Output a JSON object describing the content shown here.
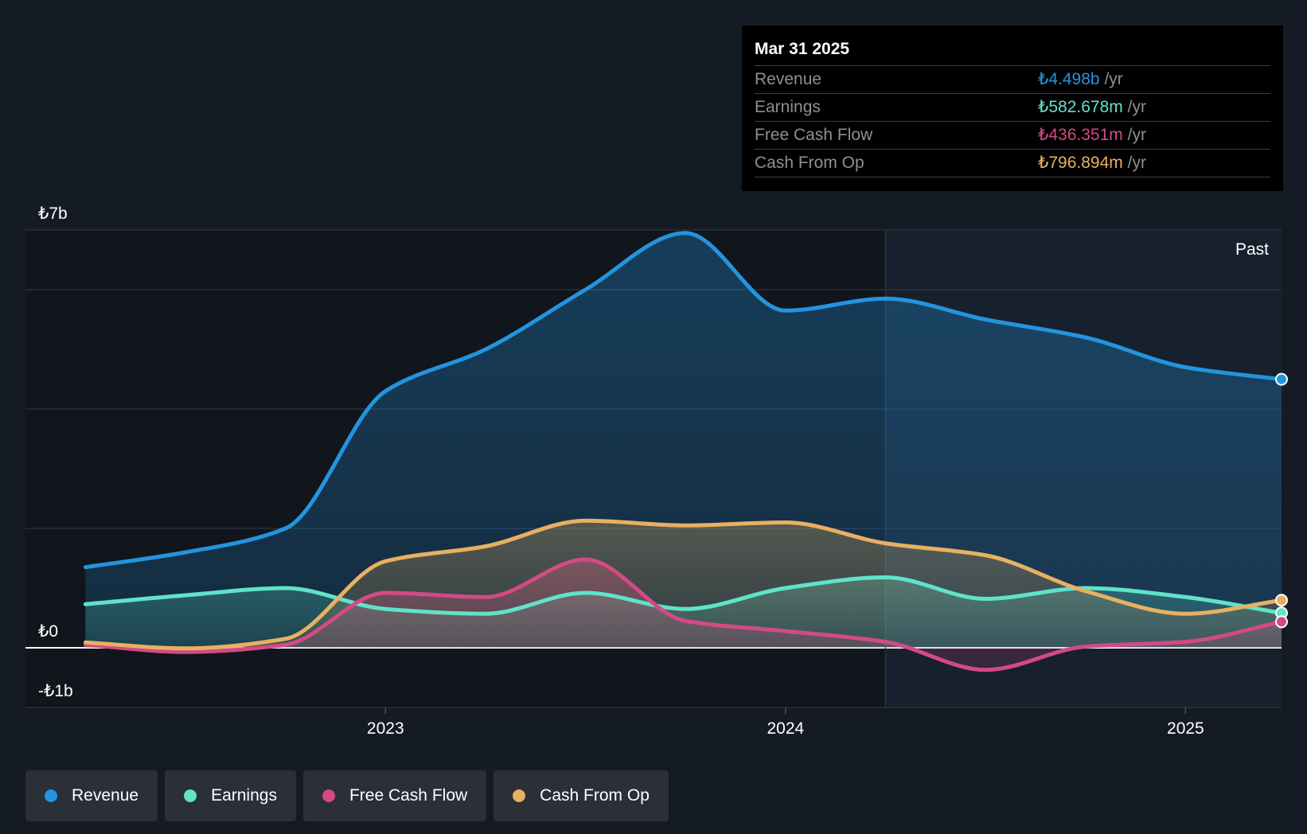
{
  "tooltip": {
    "date": "Mar 31 2025",
    "rows": [
      {
        "label": "Revenue",
        "value": "₺4.498b",
        "unit": "/yr",
        "color": "#2394df"
      },
      {
        "label": "Earnings",
        "value": "₺582.678m",
        "unit": "/yr",
        "color": "#5fe3c9"
      },
      {
        "label": "Free Cash Flow",
        "value": "₺436.351m",
        "unit": "/yr",
        "color": "#d34a85"
      },
      {
        "label": "Cash From Op",
        "value": "₺796.894m",
        "unit": "/yr",
        "color": "#e8b060"
      }
    ]
  },
  "past_label": "Past",
  "legend": [
    {
      "label": "Revenue",
      "color": "#2394df"
    },
    {
      "label": "Earnings",
      "color": "#5fe3c9"
    },
    {
      "label": "Free Cash Flow",
      "color": "#d34a85"
    },
    {
      "label": "Cash From Op",
      "color": "#e8b060"
    }
  ],
  "chart_data": {
    "type": "area",
    "title": "",
    "xlabel": "",
    "ylabel": "",
    "y_unit": "₺ billions",
    "ylim": [
      -1,
      7
    ],
    "xlim": [
      2022.1,
      2025.24
    ],
    "grid": true,
    "y_tick_labels": [
      {
        "value": 7,
        "label": "₺7b"
      },
      {
        "value": 0,
        "label": "₺0"
      },
      {
        "value": -1,
        "label": "-₺1b"
      }
    ],
    "y_gridlines": [
      7,
      6,
      4,
      2,
      0,
      -1
    ],
    "x_ticks": [
      {
        "value": 2023.0,
        "label": "2023"
      },
      {
        "value": 2024.0,
        "label": "2024"
      },
      {
        "value": 2025.0,
        "label": "2025"
      }
    ],
    "forecast_split_x": 2024.25,
    "series": [
      {
        "name": "Revenue",
        "color": "#2394df",
        "x": [
          2022.25,
          2022.5,
          2022.75,
          2023.0,
          2023.25,
          2023.5,
          2023.75,
          2024.0,
          2024.25,
          2024.5,
          2024.75,
          2025.0,
          2025.24
        ],
        "y": [
          1.35,
          1.6,
          2.0,
          4.3,
          5.0,
          6.0,
          6.95,
          5.65,
          5.85,
          5.5,
          5.2,
          4.7,
          4.498
        ]
      },
      {
        "name": "Earnings",
        "color": "#5fe3c9",
        "x": [
          2022.25,
          2022.5,
          2022.75,
          2023.0,
          2023.25,
          2023.5,
          2023.75,
          2024.0,
          2024.25,
          2024.5,
          2024.75,
          2025.0,
          2025.24
        ],
        "y": [
          0.73,
          0.88,
          1.0,
          0.65,
          0.57,
          0.92,
          0.65,
          1.0,
          1.18,
          0.82,
          1.0,
          0.85,
          0.583
        ]
      },
      {
        "name": "Free Cash Flow",
        "color": "#d34a85",
        "x": [
          2022.25,
          2022.5,
          2022.75,
          2023.0,
          2023.25,
          2023.5,
          2023.75,
          2024.0,
          2024.25,
          2024.5,
          2024.75,
          2025.0,
          2025.24
        ],
        "y": [
          0.05,
          -0.07,
          0.05,
          0.92,
          0.85,
          1.48,
          0.45,
          0.28,
          0.1,
          -0.37,
          0.02,
          0.1,
          0.436
        ]
      },
      {
        "name": "Cash From Op",
        "color": "#e8b060",
        "x": [
          2022.25,
          2022.5,
          2022.75,
          2023.0,
          2023.25,
          2023.5,
          2023.75,
          2024.0,
          2024.25,
          2024.5,
          2024.75,
          2025.0,
          2025.24
        ],
        "y": [
          0.09,
          -0.01,
          0.15,
          1.45,
          1.7,
          2.13,
          2.05,
          2.1,
          1.75,
          1.55,
          0.95,
          0.57,
          0.797
        ]
      }
    ]
  }
}
